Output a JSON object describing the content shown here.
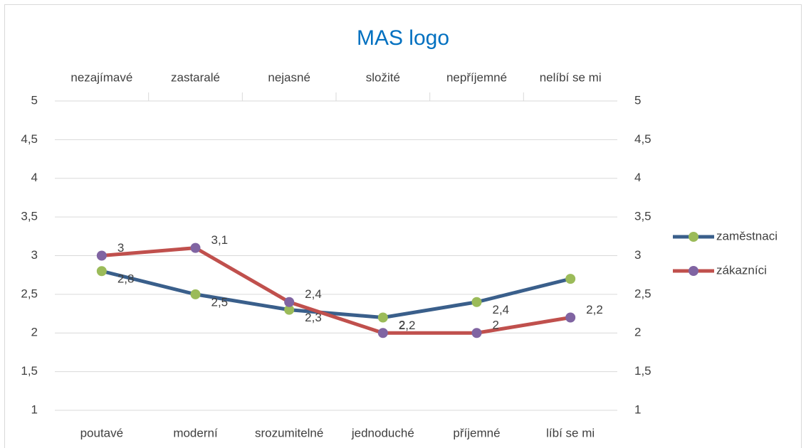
{
  "chart_data": {
    "type": "line",
    "title": "MAS logo",
    "categories": [
      "poutavé",
      "moderní",
      "srozumitelné",
      "jednoduché",
      "příjemné",
      "líbí se mi"
    ],
    "x2categories": [
      "nezajímavé",
      "zastaralé",
      "nejasné",
      "složité",
      "nepříjemné",
      "nelíbí se mi"
    ],
    "series": [
      {
        "name": "zaměstnaci",
        "color": "#3a5f8b",
        "marker_color": "#9bbb59",
        "values": [
          2.8,
          2.5,
          2.3,
          2.2,
          2.4,
          2.7
        ],
        "value_labels": [
          "2,8",
          "2,5",
          "2,3",
          "2,2",
          "2,4",
          null
        ]
      },
      {
        "name": "zákazníci",
        "color": "#c0504d",
        "marker_color": "#8064a2",
        "values": [
          3,
          3.1,
          2.4,
          2,
          2,
          2.2
        ],
        "value_labels": [
          "3",
          "3,1",
          "2,4",
          "2",
          "2",
          "2,2"
        ]
      }
    ],
    "ylim": [
      1,
      5
    ],
    "yticks": [
      1,
      {
        "value": 1.5,
        "label": "1,5"
      },
      2,
      {
        "value": 2.5,
        "label": "2,5"
      },
      3,
      {
        "value": 3.5,
        "label": "3,5"
      },
      4,
      {
        "value": 4.5,
        "label": "4,5"
      },
      5
    ],
    "y2lim": [
      1,
      5
    ],
    "y2ticks": [
      1,
      {
        "value": 1.5,
        "label": "1,5"
      },
      2,
      {
        "value": 2.5,
        "label": "2,5"
      },
      3,
      {
        "value": 3.5,
        "label": "3,5"
      },
      4,
      {
        "value": 4.5,
        "label": "4,5"
      },
      5
    ],
    "grid": true,
    "legend": "right",
    "title_color": "#0070c0"
  }
}
